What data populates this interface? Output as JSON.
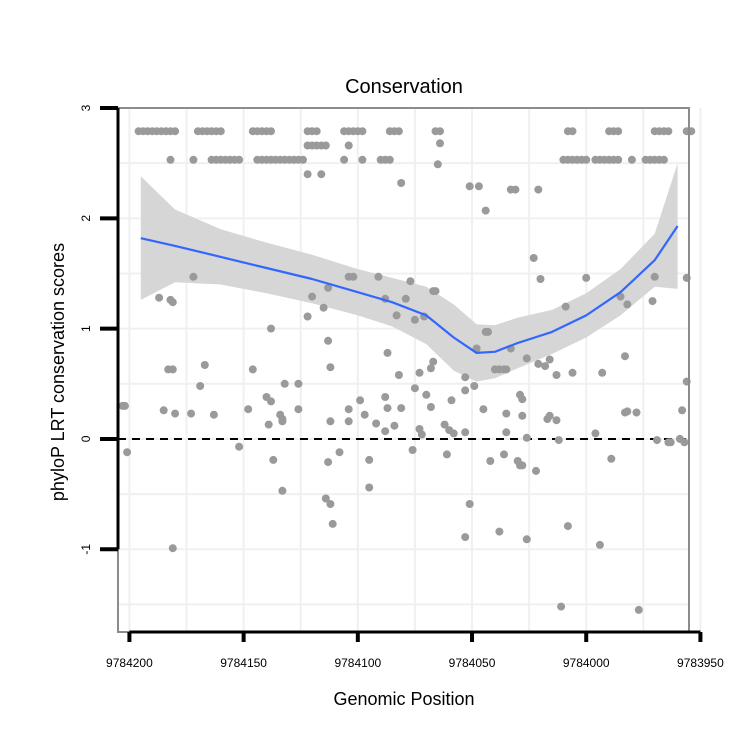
{
  "chart_data": {
    "type": "scatter",
    "title": "Conservation",
    "xlabel": "Genomic Position",
    "ylabel": "phyloP LRT conservation scores",
    "x_reversed": true,
    "xlim": [
      9784205,
      9783955
    ],
    "ylim": [
      -1.75,
      3.0
    ],
    "xticks": [
      9784200,
      9784150,
      9784100,
      9784050,
      9784000,
      9783950
    ],
    "yticks": [
      -1,
      0,
      1,
      2,
      3
    ],
    "reference_line": {
      "y": 0,
      "style": "dashed"
    },
    "grid": true,
    "colors": {
      "points": "#9a9a9a",
      "smooth": "#3366ff",
      "ribbon": "#d6d6d6",
      "frame": "#8c8c8c",
      "grid": "#f0f0f0"
    },
    "smooth": {
      "x": [
        9784195,
        9784180,
        9784160,
        9784140,
        9784120,
        9784100,
        9784085,
        9784070,
        9784058,
        9784048,
        9784040,
        9784030,
        9784015,
        9784000,
        9783985,
        9783970,
        9783960
      ],
      "y": [
        1.82,
        1.75,
        1.65,
        1.55,
        1.45,
        1.33,
        1.24,
        1.12,
        0.92,
        0.78,
        0.79,
        0.87,
        0.97,
        1.12,
        1.33,
        1.62,
        1.93
      ],
      "lower": [
        1.26,
        1.42,
        1.4,
        1.32,
        1.23,
        1.12,
        1.02,
        0.86,
        0.62,
        0.52,
        0.55,
        0.64,
        0.77,
        0.92,
        1.12,
        1.38,
        1.36
      ],
      "upper": [
        2.38,
        2.08,
        1.9,
        1.78,
        1.67,
        1.54,
        1.46,
        1.38,
        1.22,
        1.04,
        1.03,
        1.1,
        1.17,
        1.32,
        1.54,
        1.86,
        2.5
      ]
    },
    "points": [
      {
        "x": 9784196,
        "y": 2.79
      },
      {
        "x": 9784194,
        "y": 2.79
      },
      {
        "x": 9784192,
        "y": 2.79
      },
      {
        "x": 9784190,
        "y": 2.79
      },
      {
        "x": 9784188,
        "y": 2.79
      },
      {
        "x": 9784186,
        "y": 2.79
      },
      {
        "x": 9784184,
        "y": 2.79
      },
      {
        "x": 9784182,
        "y": 2.79
      },
      {
        "x": 9784180,
        "y": 2.79
      },
      {
        "x": 9784170,
        "y": 2.79
      },
      {
        "x": 9784168,
        "y": 2.79
      },
      {
        "x": 9784166,
        "y": 2.79
      },
      {
        "x": 9784164,
        "y": 2.79
      },
      {
        "x": 9784162,
        "y": 2.79
      },
      {
        "x": 9784160,
        "y": 2.79
      },
      {
        "x": 9784146,
        "y": 2.79
      },
      {
        "x": 9784144,
        "y": 2.79
      },
      {
        "x": 9784142,
        "y": 2.79
      },
      {
        "x": 9784140,
        "y": 2.79
      },
      {
        "x": 9784138,
        "y": 2.79
      },
      {
        "x": 9784122,
        "y": 2.79
      },
      {
        "x": 9784120,
        "y": 2.79
      },
      {
        "x": 9784118,
        "y": 2.79
      },
      {
        "x": 9784106,
        "y": 2.79
      },
      {
        "x": 9784104,
        "y": 2.79
      },
      {
        "x": 9784102,
        "y": 2.79
      },
      {
        "x": 9784100,
        "y": 2.79
      },
      {
        "x": 9784098,
        "y": 2.79
      },
      {
        "x": 9784086,
        "y": 2.79
      },
      {
        "x": 9784084,
        "y": 2.79
      },
      {
        "x": 9784082,
        "y": 2.79
      },
      {
        "x": 9784066,
        "y": 2.79
      },
      {
        "x": 9784064,
        "y": 2.79
      },
      {
        "x": 9784008,
        "y": 2.79
      },
      {
        "x": 9784006,
        "y": 2.79
      },
      {
        "x": 9783990,
        "y": 2.79
      },
      {
        "x": 9783988,
        "y": 2.79
      },
      {
        "x": 9783986,
        "y": 2.79
      },
      {
        "x": 9783970,
        "y": 2.79
      },
      {
        "x": 9783968,
        "y": 2.79
      },
      {
        "x": 9783966,
        "y": 2.79
      },
      {
        "x": 9783964,
        "y": 2.79
      },
      {
        "x": 9783956,
        "y": 2.79
      },
      {
        "x": 9783954,
        "y": 2.79
      },
      {
        "x": 9784182,
        "y": 2.53
      },
      {
        "x": 9784172,
        "y": 2.53
      },
      {
        "x": 9784164,
        "y": 2.53
      },
      {
        "x": 9784162,
        "y": 2.53
      },
      {
        "x": 9784160,
        "y": 2.53
      },
      {
        "x": 9784158,
        "y": 2.53
      },
      {
        "x": 9784156,
        "y": 2.53
      },
      {
        "x": 9784154,
        "y": 2.53
      },
      {
        "x": 9784152,
        "y": 2.53
      },
      {
        "x": 9784144,
        "y": 2.53
      },
      {
        "x": 9784142,
        "y": 2.53
      },
      {
        "x": 9784140,
        "y": 2.53
      },
      {
        "x": 9784138,
        "y": 2.53
      },
      {
        "x": 9784136,
        "y": 2.53
      },
      {
        "x": 9784134,
        "y": 2.53
      },
      {
        "x": 9784132,
        "y": 2.53
      },
      {
        "x": 9784130,
        "y": 2.53
      },
      {
        "x": 9784128,
        "y": 2.53
      },
      {
        "x": 9784126,
        "y": 2.53
      },
      {
        "x": 9784124,
        "y": 2.53
      },
      {
        "x": 9784106,
        "y": 2.53
      },
      {
        "x": 9784098,
        "y": 2.53
      },
      {
        "x": 9784090,
        "y": 2.53
      },
      {
        "x": 9784088,
        "y": 2.53
      },
      {
        "x": 9784086,
        "y": 2.53
      },
      {
        "x": 9784010,
        "y": 2.53
      },
      {
        "x": 9784008,
        "y": 2.53
      },
      {
        "x": 9784006,
        "y": 2.53
      },
      {
        "x": 9784004,
        "y": 2.53
      },
      {
        "x": 9784002,
        "y": 2.53
      },
      {
        "x": 9784000,
        "y": 2.53
      },
      {
        "x": 9783996,
        "y": 2.53
      },
      {
        "x": 9783994,
        "y": 2.53
      },
      {
        "x": 9783992,
        "y": 2.53
      },
      {
        "x": 9783990,
        "y": 2.53
      },
      {
        "x": 9783988,
        "y": 2.53
      },
      {
        "x": 9783986,
        "y": 2.53
      },
      {
        "x": 9783980,
        "y": 2.53
      },
      {
        "x": 9783974,
        "y": 2.53
      },
      {
        "x": 9783972,
        "y": 2.53
      },
      {
        "x": 9783970,
        "y": 2.53
      },
      {
        "x": 9783968,
        "y": 2.53
      },
      {
        "x": 9783966,
        "y": 2.53
      },
      {
        "x": 9784122,
        "y": 2.66
      },
      {
        "x": 9784120,
        "y": 2.66
      },
      {
        "x": 9784118,
        "y": 2.66
      },
      {
        "x": 9784116,
        "y": 2.66
      },
      {
        "x": 9784114,
        "y": 2.66
      },
      {
        "x": 9784104,
        "y": 2.66
      },
      {
        "x": 9784064,
        "y": 2.68
      },
      {
        "x": 9784122,
        "y": 2.4
      },
      {
        "x": 9784116,
        "y": 2.4
      },
      {
        "x": 9784065,
        "y": 2.49
      },
      {
        "x": 9784081,
        "y": 2.32
      },
      {
        "x": 9784051,
        "y": 2.29
      },
      {
        "x": 9784047,
        "y": 2.29
      },
      {
        "x": 9784033,
        "y": 2.26
      },
      {
        "x": 9784031,
        "y": 2.26
      },
      {
        "x": 9784021,
        "y": 2.26
      },
      {
        "x": 9784044,
        "y": 2.07
      },
      {
        "x": 9784023,
        "y": 1.64
      },
      {
        "x": 9784104,
        "y": 1.47
      },
      {
        "x": 9784102,
        "y": 1.47
      },
      {
        "x": 9784091,
        "y": 1.47
      },
      {
        "x": 9784172,
        "y": 1.47
      },
      {
        "x": 9784077,
        "y": 1.43
      },
      {
        "x": 9784067,
        "y": 1.34
      },
      {
        "x": 9784066,
        "y": 1.34
      },
      {
        "x": 9784020,
        "y": 1.45
      },
      {
        "x": 9784000,
        "y": 1.46
      },
      {
        "x": 9783956,
        "y": 1.46
      },
      {
        "x": 9783970,
        "y": 1.47
      },
      {
        "x": 9784113,
        "y": 1.37
      },
      {
        "x": 9784187,
        "y": 1.28
      },
      {
        "x": 9784182,
        "y": 1.26
      },
      {
        "x": 9784181,
        "y": 1.24
      },
      {
        "x": 9784120,
        "y": 1.29
      },
      {
        "x": 9784088,
        "y": 1.27
      },
      {
        "x": 9784079,
        "y": 1.27
      },
      {
        "x": 9784009,
        "y": 1.2
      },
      {
        "x": 9783971,
        "y": 1.25
      },
      {
        "x": 9783985,
        "y": 1.29
      },
      {
        "x": 9783982,
        "y": 1.22
      },
      {
        "x": 9784115,
        "y": 1.19
      },
      {
        "x": 9784122,
        "y": 1.11
      },
      {
        "x": 9784083,
        "y": 1.12
      },
      {
        "x": 9784071,
        "y": 1.11
      },
      {
        "x": 9784075,
        "y": 1.08
      },
      {
        "x": 9784138,
        "y": 1.0
      },
      {
        "x": 9784044,
        "y": 0.97
      },
      {
        "x": 9784043,
        "y": 0.97
      },
      {
        "x": 9784048,
        "y": 0.82
      },
      {
        "x": 9784033,
        "y": 0.82
      },
      {
        "x": 9784113,
        "y": 0.89
      },
      {
        "x": 9784087,
        "y": 0.78
      },
      {
        "x": 9784067,
        "y": 0.7
      },
      {
        "x": 9784068,
        "y": 0.64
      },
      {
        "x": 9784040,
        "y": 0.63
      },
      {
        "x": 9784038,
        "y": 0.63
      },
      {
        "x": 9784036,
        "y": 0.63
      },
      {
        "x": 9784035,
        "y": 0.63
      },
      {
        "x": 9784026,
        "y": 0.73
      },
      {
        "x": 9784016,
        "y": 0.72
      },
      {
        "x": 9784021,
        "y": 0.68
      },
      {
        "x": 9784018,
        "y": 0.66
      },
      {
        "x": 9783983,
        "y": 0.75
      },
      {
        "x": 9784167,
        "y": 0.67
      },
      {
        "x": 9784183,
        "y": 0.63
      },
      {
        "x": 9784181,
        "y": 0.63
      },
      {
        "x": 9784146,
        "y": 0.63
      },
      {
        "x": 9784112,
        "y": 0.65
      },
      {
        "x": 9784099,
        "y": 0.35
      },
      {
        "x": 9784073,
        "y": 0.6
      },
      {
        "x": 9784082,
        "y": 0.58
      },
      {
        "x": 9784053,
        "y": 0.56
      },
      {
        "x": 9784049,
        "y": 0.48
      },
      {
        "x": 9784013,
        "y": 0.58
      },
      {
        "x": 9784006,
        "y": 0.6
      },
      {
        "x": 9783993,
        "y": 0.6
      },
      {
        "x": 9783956,
        "y": 0.52
      },
      {
        "x": 9784169,
        "y": 0.48
      },
      {
        "x": 9784132,
        "y": 0.5
      },
      {
        "x": 9784126,
        "y": 0.5
      },
      {
        "x": 9784075,
        "y": 0.46
      },
      {
        "x": 9784053,
        "y": 0.44
      },
      {
        "x": 9784070,
        "y": 0.4
      },
      {
        "x": 9784059,
        "y": 0.35
      },
      {
        "x": 9784029,
        "y": 0.4
      },
      {
        "x": 9784028,
        "y": 0.36
      },
      {
        "x": 9784088,
        "y": 0.38
      },
      {
        "x": 9784087,
        "y": 0.28
      },
      {
        "x": 9784203,
        "y": 0.3
      },
      {
        "x": 9784202,
        "y": 0.3
      },
      {
        "x": 9784185,
        "y": 0.26
      },
      {
        "x": 9784180,
        "y": 0.23
      },
      {
        "x": 9784173,
        "y": 0.23
      },
      {
        "x": 9784163,
        "y": 0.22
      },
      {
        "x": 9784148,
        "y": 0.27
      },
      {
        "x": 9784140,
        "y": 0.38
      },
      {
        "x": 9784138,
        "y": 0.34
      },
      {
        "x": 9784134,
        "y": 0.22
      },
      {
        "x": 9784133,
        "y": 0.18
      },
      {
        "x": 9784126,
        "y": 0.27
      },
      {
        "x": 9784104,
        "y": 0.27
      },
      {
        "x": 9784097,
        "y": 0.22
      },
      {
        "x": 9784081,
        "y": 0.28
      },
      {
        "x": 9784068,
        "y": 0.29
      },
      {
        "x": 9784045,
        "y": 0.27
      },
      {
        "x": 9784035,
        "y": 0.23
      },
      {
        "x": 9784028,
        "y": 0.21
      },
      {
        "x": 9784016,
        "y": 0.21
      },
      {
        "x": 9783982,
        "y": 0.25
      },
      {
        "x": 9783983,
        "y": 0.24
      },
      {
        "x": 9783958,
        "y": 0.26
      },
      {
        "x": 9783978,
        "y": 0.24
      },
      {
        "x": 9784139,
        "y": 0.13
      },
      {
        "x": 9784133,
        "y": 0.16
      },
      {
        "x": 9784112,
        "y": 0.16
      },
      {
        "x": 9784104,
        "y": 0.16
      },
      {
        "x": 9784084,
        "y": 0.12
      },
      {
        "x": 9784073,
        "y": 0.09
      },
      {
        "x": 9784062,
        "y": 0.13
      },
      {
        "x": 9784060,
        "y": 0.08
      },
      {
        "x": 9784058,
        "y": 0.05
      },
      {
        "x": 9784053,
        "y": 0.06
      },
      {
        "x": 9784035,
        "y": 0.06
      },
      {
        "x": 9784017,
        "y": 0.18
      },
      {
        "x": 9784013,
        "y": 0.17
      },
      {
        "x": 9783996,
        "y": 0.05
      },
      {
        "x": 9784092,
        "y": 0.14
      },
      {
        "x": 9784088,
        "y": 0.07
      },
      {
        "x": 9784072,
        "y": 0.04
      },
      {
        "x": 9784026,
        "y": 0.01
      },
      {
        "x": 9784012,
        "y": -0.01
      },
      {
        "x": 9783969,
        "y": -0.01
      },
      {
        "x": 9783964,
        "y": -0.03
      },
      {
        "x": 9783963,
        "y": -0.03
      },
      {
        "x": 9783957,
        "y": -0.03
      },
      {
        "x": 9783959,
        "y": 0.0
      },
      {
        "x": 9784201,
        "y": -0.12
      },
      {
        "x": 9784152,
        "y": -0.07
      },
      {
        "x": 9784108,
        "y": -0.12
      },
      {
        "x": 9784076,
        "y": -0.1
      },
      {
        "x": 9784061,
        "y": -0.14
      },
      {
        "x": 9784137,
        "y": -0.19
      },
      {
        "x": 9784113,
        "y": -0.21
      },
      {
        "x": 9784095,
        "y": -0.19
      },
      {
        "x": 9784030,
        "y": -0.2
      },
      {
        "x": 9784029,
        "y": -0.24
      },
      {
        "x": 9784028,
        "y": -0.24
      },
      {
        "x": 9784022,
        "y": -0.29
      },
      {
        "x": 9784042,
        "y": -0.2
      },
      {
        "x": 9784036,
        "y": -0.14
      },
      {
        "x": 9783989,
        "y": -0.18
      },
      {
        "x": 9784133,
        "y": -0.47
      },
      {
        "x": 9784095,
        "y": -0.44
      },
      {
        "x": 9784114,
        "y": -0.54
      },
      {
        "x": 9784112,
        "y": -0.59
      },
      {
        "x": 9784051,
        "y": -0.59
      },
      {
        "x": 9784111,
        "y": -0.77
      },
      {
        "x": 9784008,
        "y": -0.79
      },
      {
        "x": 9784038,
        "y": -0.84
      },
      {
        "x": 9784053,
        "y": -0.89
      },
      {
        "x": 9784026,
        "y": -0.91
      },
      {
        "x": 9783994,
        "y": -0.96
      },
      {
        "x": 9784181,
        "y": -0.99
      },
      {
        "x": 9784011,
        "y": -1.52
      },
      {
        "x": 9783977,
        "y": -1.55
      }
    ]
  }
}
